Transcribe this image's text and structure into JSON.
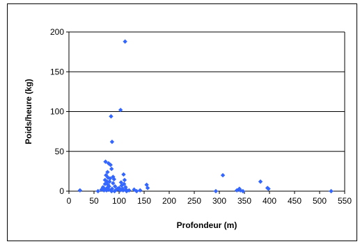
{
  "chart_data": {
    "type": "scatter",
    "title": "",
    "xlabel": "Profondeur (m)",
    "ylabel": "Poids/heure (kg)",
    "xlim": [
      0,
      550
    ],
    "ylim": [
      0,
      200
    ],
    "xticks": [
      0,
      50,
      100,
      150,
      200,
      250,
      300,
      350,
      400,
      450,
      500,
      550
    ],
    "yticks": [
      0,
      50,
      100,
      150,
      200
    ],
    "grid": "horizontal",
    "legend": "none",
    "marker": "diamond",
    "color": "#3366ff",
    "series": [
      {
        "points": [
          [
            22,
            1
          ],
          [
            58,
            0
          ],
          [
            65,
            2
          ],
          [
            68,
            5
          ],
          [
            70,
            3
          ],
          [
            72,
            9
          ],
          [
            72,
            14
          ],
          [
            73,
            37
          ],
          [
            74,
            20
          ],
          [
            75,
            1
          ],
          [
            76,
            4
          ],
          [
            76,
            12
          ],
          [
            77,
            24
          ],
          [
            78,
            8
          ],
          [
            78,
            17
          ],
          [
            79,
            35
          ],
          [
            80,
            2
          ],
          [
            80,
            6
          ],
          [
            81,
            12
          ],
          [
            82,
            16
          ],
          [
            83,
            33
          ],
          [
            84,
            94
          ],
          [
            85,
            28
          ],
          [
            86,
            62
          ],
          [
            86,
            3
          ],
          [
            88,
            10
          ],
          [
            88,
            18
          ],
          [
            90,
            15
          ],
          [
            92,
            6
          ],
          [
            95,
            2
          ],
          [
            100,
            4
          ],
          [
            103,
            102
          ],
          [
            104,
            11
          ],
          [
            105,
            7
          ],
          [
            107,
            3
          ],
          [
            108,
            1
          ],
          [
            109,
            21
          ],
          [
            110,
            9
          ],
          [
            111,
            14
          ],
          [
            112,
            188
          ],
          [
            113,
            5
          ],
          [
            114,
            2
          ],
          [
            115,
            0
          ],
          [
            120,
            1
          ],
          [
            130,
            2
          ],
          [
            135,
            0
          ],
          [
            142,
            1
          ],
          [
            155,
            8
          ],
          [
            157,
            4
          ],
          [
            293,
            0
          ],
          [
            307,
            20
          ],
          [
            335,
            1
          ],
          [
            340,
            3
          ],
          [
            342,
            1
          ],
          [
            347,
            0
          ],
          [
            382,
            12
          ],
          [
            396,
            4
          ],
          [
            398,
            3
          ],
          [
            523,
            0
          ],
          [
            70,
            1
          ],
          [
            85,
            0
          ],
          [
            97,
            3
          ],
          [
            102,
            1
          ],
          [
            91,
            0
          ]
        ]
      }
    ]
  }
}
